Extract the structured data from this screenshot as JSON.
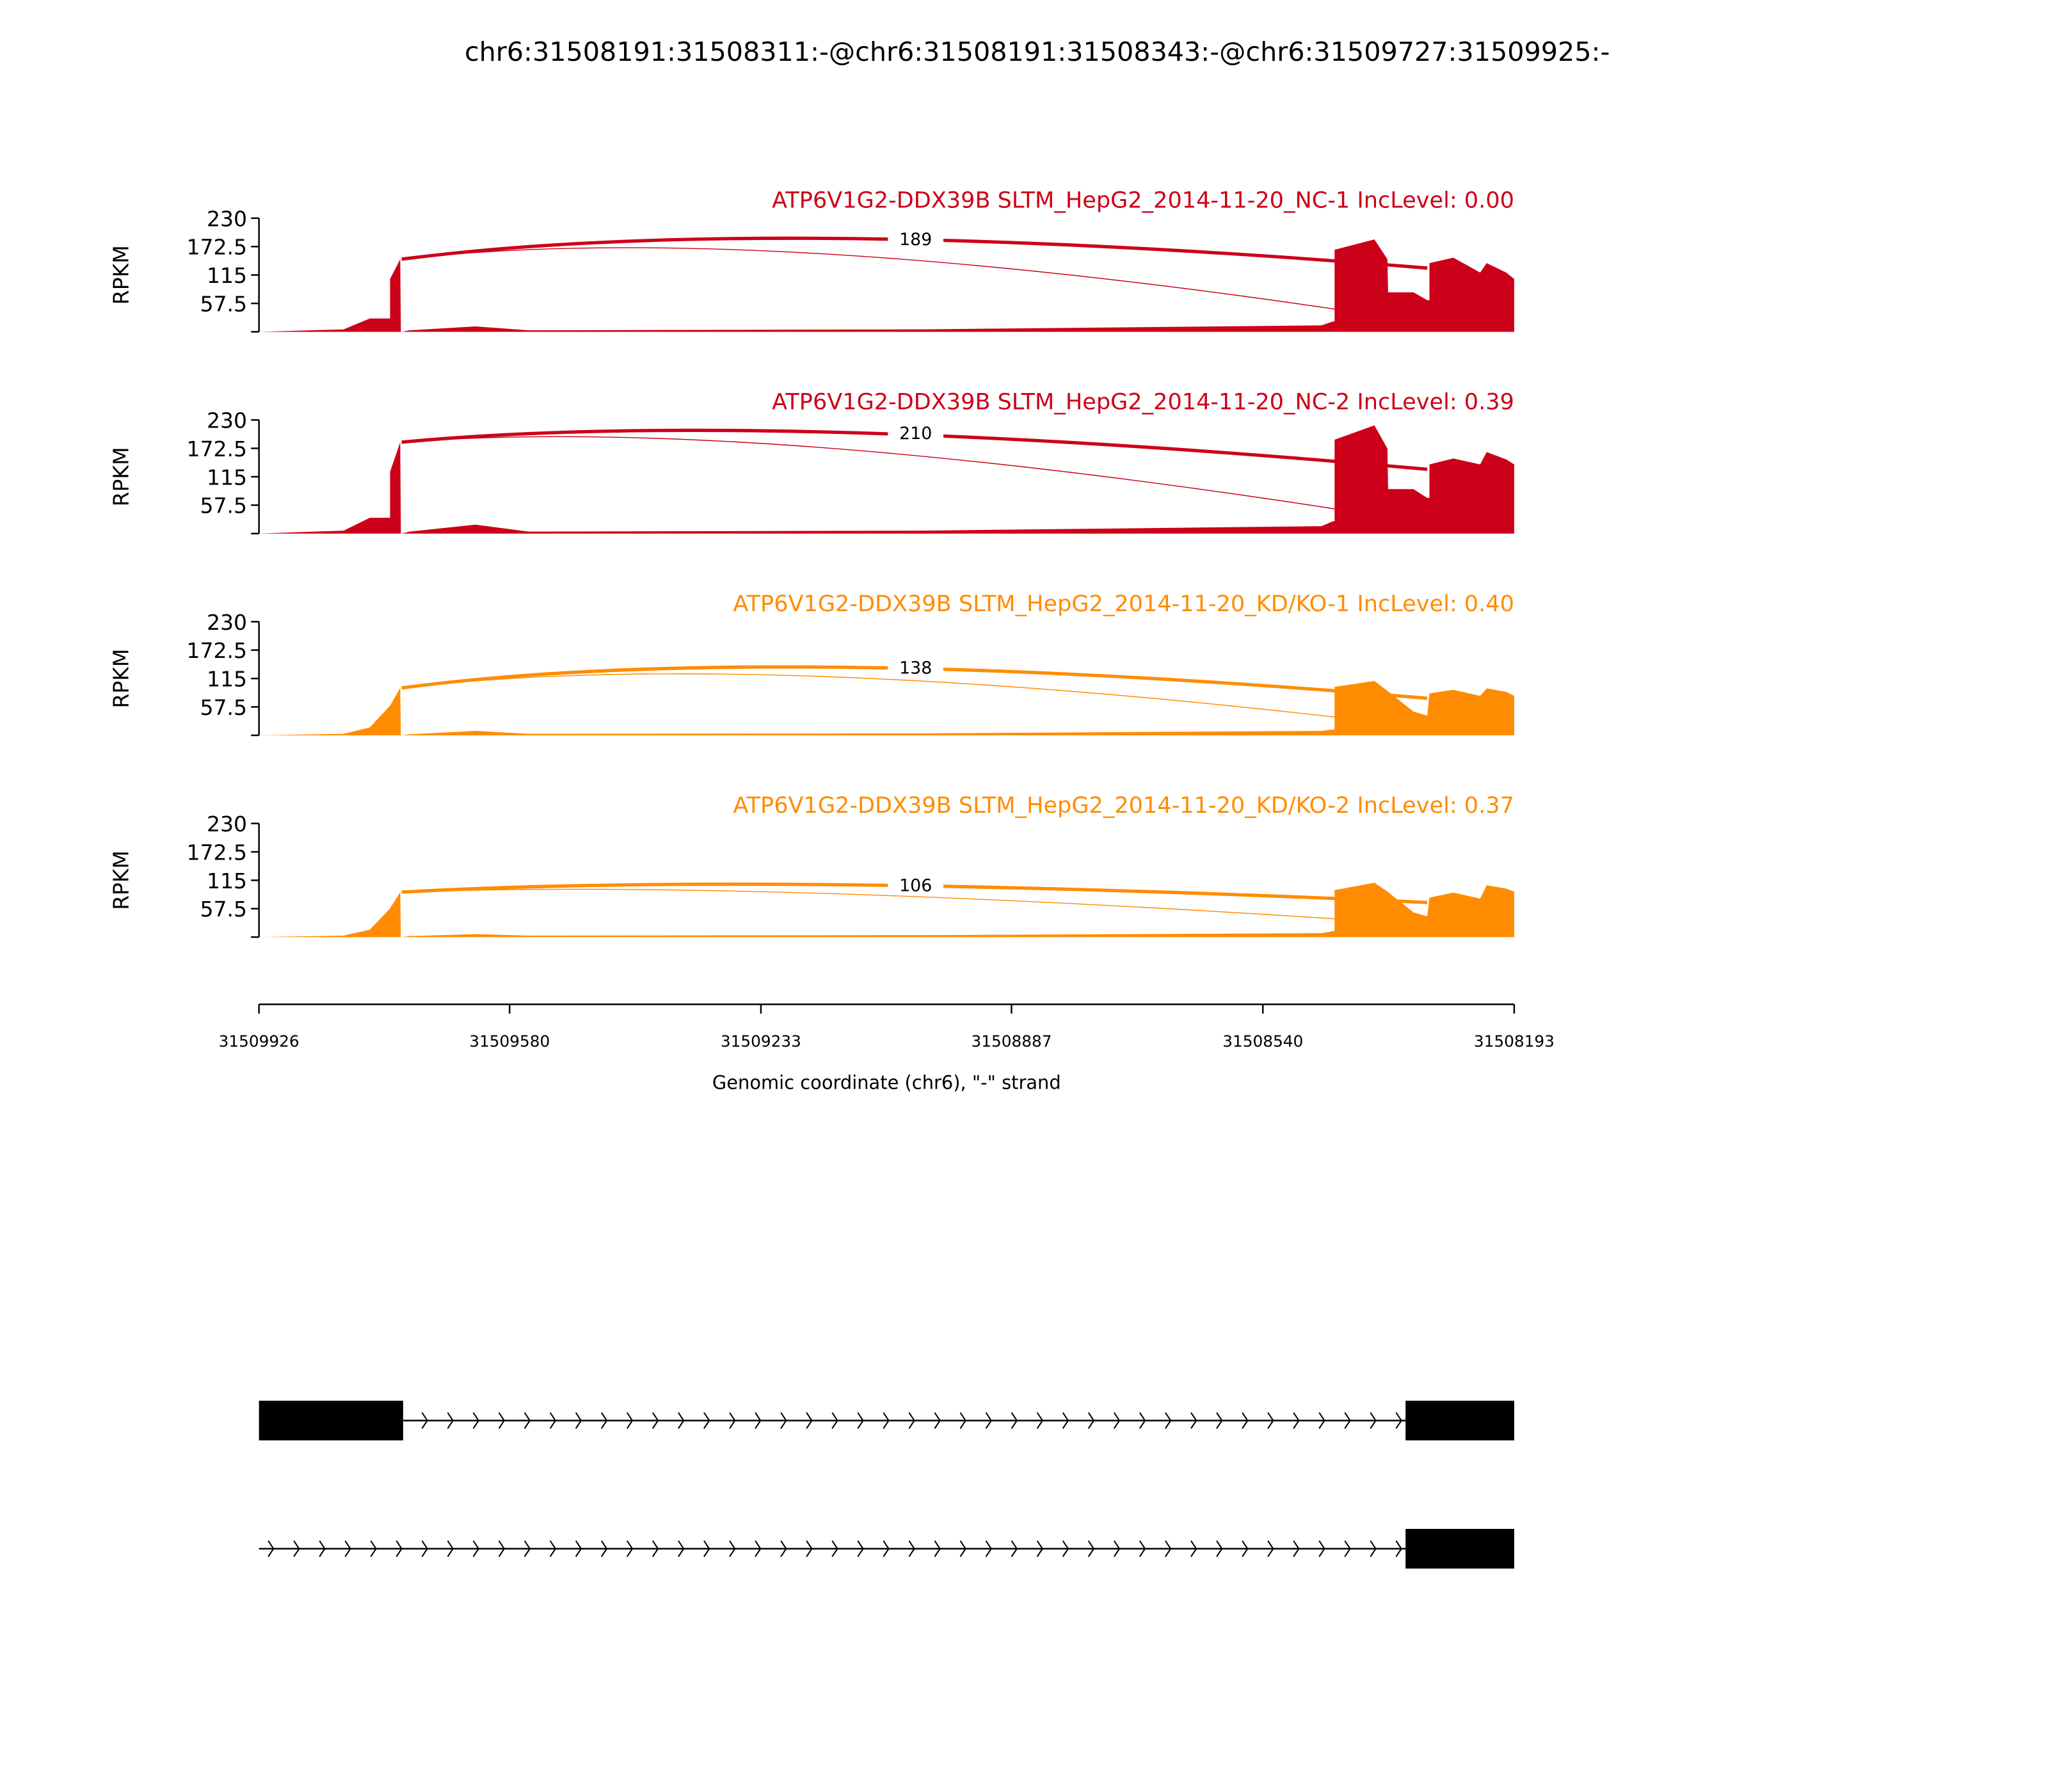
{
  "title": "chr6:31508191:31508311:-@chr6:31508191:31508343:-@chr6:31509727:31509925:-",
  "chart_data": {
    "type": "area",
    "ylabel": "RPKM",
    "xlabel": "Genomic coordinate (chr6), \"-\" strand",
    "xlim": [
      31509926,
      31508193
    ],
    "ylim": [
      0,
      230
    ],
    "yticks": [
      "57.5",
      "115",
      "172.5",
      "230"
    ],
    "xticks": [
      "31509926",
      "31509580",
      "31509233",
      "31508887",
      "31508540",
      "31508193"
    ],
    "coverage_x": [
      31509926,
      31509809,
      31509773,
      31509745,
      31509731,
      31509729,
      31509718,
      31509627,
      31509554,
      31509007,
      31508459,
      31508443,
      31508441,
      31508386,
      31508368,
      31508332,
      31508313,
      31508310,
      31508277,
      31508240,
      31508231,
      31508204,
      31508193
    ],
    "samples": [
      {
        "label": "ATP6V1G2-DDX39B SLTM_HepG2_2014-11-20_NC-1 IncLevel: 0.00",
        "color": "#cc0018",
        "junction_count": "189",
        "coverage_y": [
          0,
          5,
          27,
          107,
          147,
          0,
          3,
          11,
          3,
          5,
          13,
          21,
          166,
          187,
          147,
          80,
          64,
          139,
          150,
          120,
          139,
          120,
          107
        ]
      },
      {
        "label": "ATP6V1G2-DDX39B SLTM_HepG2_2014-11-20_NC-2 IncLevel: 0.39",
        "color": "#cc0018",
        "junction_count": "210",
        "coverage_y": [
          0,
          6,
          32,
          125,
          185,
          0,
          4,
          18,
          4,
          6,
          15,
          25,
          190,
          219,
          172,
          90,
          72,
          140,
          152,
          140,
          165,
          150,
          140
        ]
      },
      {
        "label": "ATP6V1G2-DDX39B SLTM_HepG2_2014-11-20_KD/KO-1 IncLevel: 0.40",
        "color": "#ff8c00",
        "junction_count": "138",
        "coverage_y": [
          0,
          3,
          16,
          60,
          96,
          0,
          2,
          9,
          3,
          4,
          9,
          12,
          98,
          110,
          90,
          48,
          40,
          85,
          92,
          80,
          95,
          88,
          80
        ]
      },
      {
        "label": "ATP6V1G2-DDX39B SLTM_HepG2_2014-11-20_KD/KO-2 IncLevel: 0.37",
        "color": "#ff8c00",
        "junction_count": "106",
        "coverage_y": [
          0,
          3,
          15,
          58,
          91,
          0,
          2,
          6,
          3,
          4,
          8,
          12,
          95,
          110,
          92,
          50,
          42,
          80,
          90,
          78,
          105,
          98,
          92
        ]
      }
    ],
    "transcripts": [
      {
        "exons": [
          [
            31509926,
            31509727
          ],
          [
            31508343,
            31508193
          ]
        ]
      },
      {
        "exons": [
          [
            31508343,
            31508193
          ]
        ]
      }
    ]
  }
}
